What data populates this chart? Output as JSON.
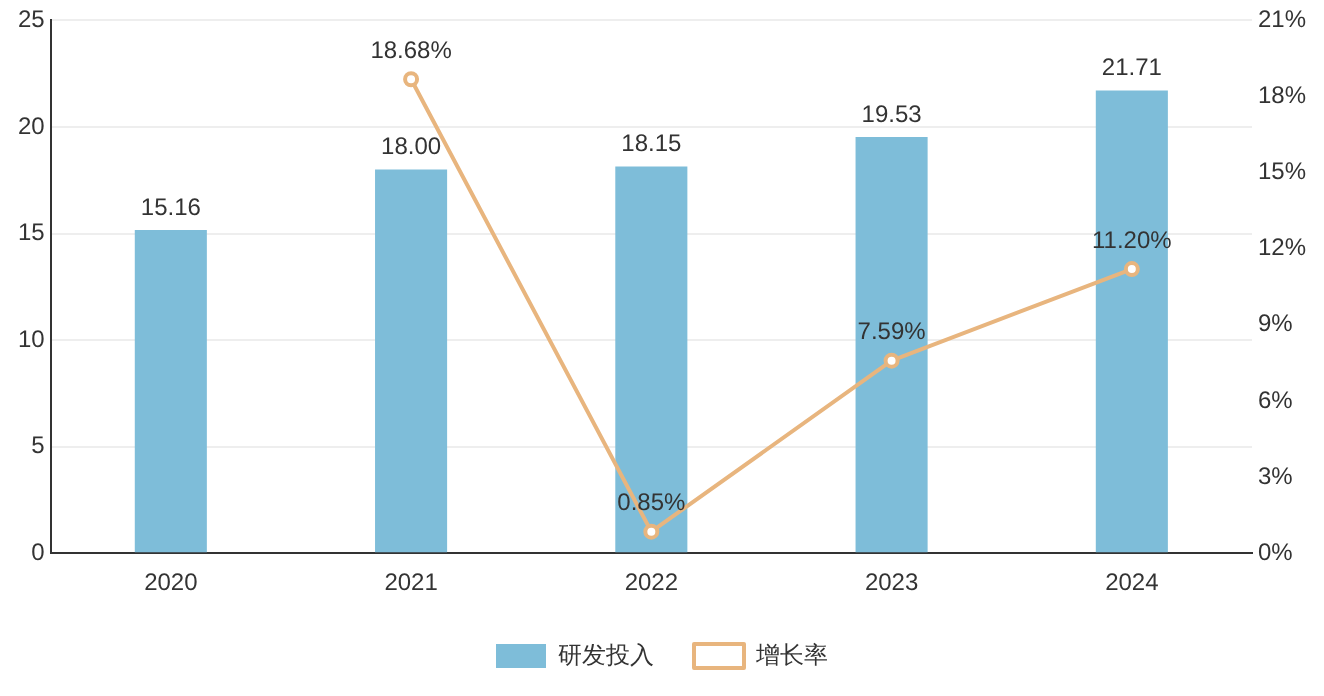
{
  "chart_data": {
    "type": "bar",
    "categories": [
      "2020",
      "2021",
      "2022",
      "2023",
      "2024"
    ],
    "series": [
      {
        "name": "研发投入",
        "color": "#7ebdd9",
        "values": [
          15.16,
          18.0,
          18.15,
          19.53,
          21.71
        ],
        "value_labels": [
          "15.16",
          "18.00",
          "18.15",
          "19.53",
          "21.71"
        ]
      },
      {
        "name": "增长率",
        "type": "line",
        "axis": "y2",
        "color": "#e8b57e",
        "values": [
          null,
          18.68,
          0.85,
          7.59,
          11.2
        ],
        "value_labels": [
          null,
          "18.68%",
          "0.85%",
          "7.59%",
          "11.20%"
        ]
      }
    ],
    "ylim": [
      0,
      25
    ],
    "yticks": [
      0,
      5,
      10,
      15,
      20,
      25
    ],
    "y2lim": [
      0,
      21
    ],
    "y2ticks": [
      {
        "value": 0,
        "label": "0%"
      },
      {
        "value": 3,
        "label": "3%"
      },
      {
        "value": 6,
        "label": "6%"
      },
      {
        "value": 9,
        "label": "9%"
      },
      {
        "value": 12,
        "label": "12%"
      },
      {
        "value": 15,
        "label": "15%"
      },
      {
        "value": 18,
        "label": "18%"
      },
      {
        "value": 21,
        "label": "21%"
      }
    ],
    "grid": "y",
    "legend": "bottom",
    "marker": "circle"
  }
}
